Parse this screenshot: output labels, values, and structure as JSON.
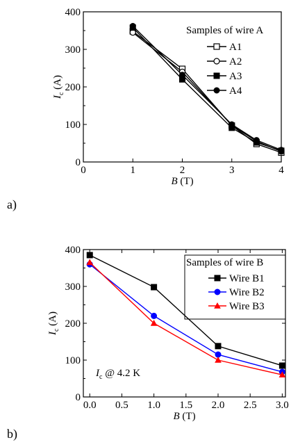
{
  "colors": {
    "wire_b1": "#000000",
    "wire_b2": "#0000ff",
    "wire_b3": "#ff0000"
  },
  "panels": {
    "a": {
      "label": "a)"
    },
    "b": {
      "label": "b)"
    }
  },
  "chart_data": [
    {
      "type": "line",
      "panel": "a)",
      "legend_title": "Samples of wire A",
      "legend_position": "top-right",
      "xlabel": {
        "italic": "B",
        "rest": " (T)"
      },
      "ylabel": {
        "italic": "I",
        "sub": "c",
        "rest": " (A)"
      },
      "xlim": [
        0,
        4
      ],
      "ylim": [
        0,
        400
      ],
      "xticks": [
        0,
        1,
        2,
        3,
        4
      ],
      "xtick_labels": [
        "0",
        "1",
        "2",
        "3",
        "4"
      ],
      "yticks": [
        0,
        100,
        200,
        300,
        400
      ],
      "ytick_labels": [
        "0",
        "100",
        "200",
        "300",
        "400"
      ],
      "grid": false,
      "x": [
        1,
        2,
        3,
        3.5,
        4
      ],
      "series": [
        {
          "name": "A1",
          "marker": "square-open",
          "values": [
            348,
            248,
            97,
            48,
            25
          ]
        },
        {
          "name": "A2",
          "marker": "circle-open",
          "values": [
            345,
            240,
            98,
            55,
            28
          ]
        },
        {
          "name": "A3",
          "marker": "square-filled",
          "values": [
            358,
            220,
            91,
            52,
            30
          ]
        },
        {
          "name": "A4",
          "marker": "circle-filled",
          "values": [
            362,
            232,
            100,
            58,
            32
          ]
        }
      ]
    },
    {
      "type": "line",
      "panel": "b)",
      "legend_title": "Samples of wire B",
      "legend_position": "top-right",
      "annotation": {
        "italic": "I",
        "sub": "c",
        "rest": " @ 4.2 K"
      },
      "xlabel": {
        "italic": "B",
        "rest": " (T)"
      },
      "ylabel": {
        "italic": "I",
        "sub": "c",
        "rest": " (A)"
      },
      "xlim": [
        -0.1,
        3.05
      ],
      "ylim": [
        0,
        400
      ],
      "xticks": [
        0,
        0.5,
        1,
        1.5,
        2,
        2.5,
        3
      ],
      "xtick_labels": [
        "0.0",
        "0.5",
        "1.0",
        "1.5",
        "2.0",
        "2.5",
        "3.0"
      ],
      "yticks": [
        0,
        100,
        200,
        300,
        400
      ],
      "ytick_labels": [
        "0",
        "100",
        "200",
        "300",
        "400"
      ],
      "grid": false,
      "x": [
        0,
        1,
        2,
        3
      ],
      "series": [
        {
          "name": "Wire B1",
          "marker": "square-filled",
          "color": "#000000",
          "values": [
            385,
            298,
            138,
            85
          ]
        },
        {
          "name": "Wire B2",
          "marker": "circle-filled",
          "color": "#0000ff",
          "values": [
            360,
            220,
            115,
            68
          ]
        },
        {
          "name": "Wire B3",
          "marker": "triangle-filled",
          "color": "#ff0000",
          "values": [
            365,
            200,
            100,
            60
          ]
        }
      ]
    }
  ]
}
